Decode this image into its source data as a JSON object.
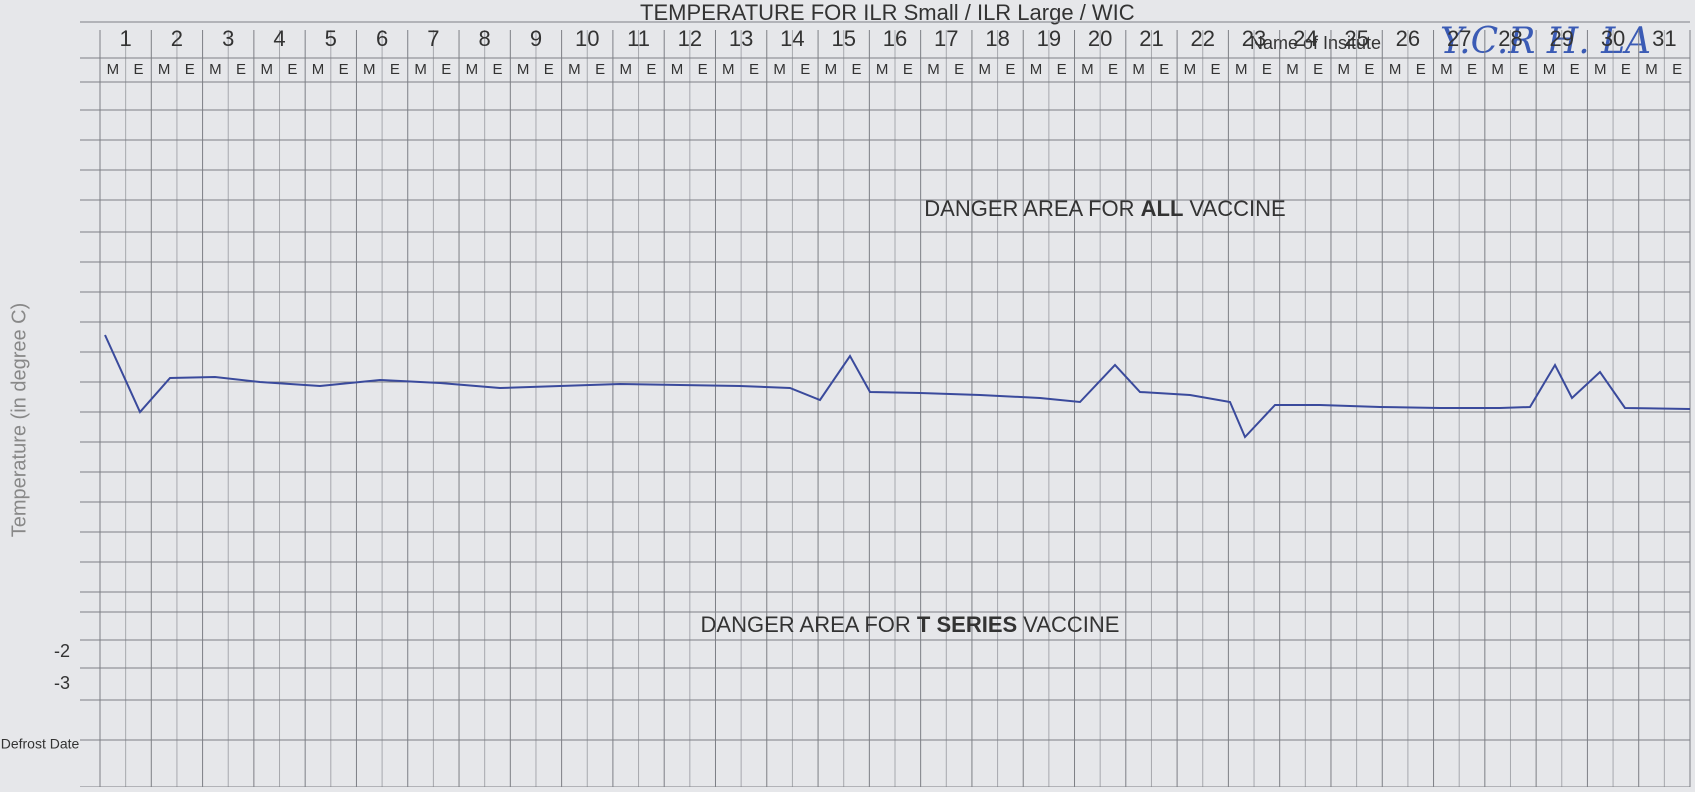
{
  "header": {
    "title": "TEMPERATURE FOR ILR Small / ILR Large / WIC",
    "institute_label": "Name of Insitute",
    "institute_value": "Y.C.R H. LA"
  },
  "days": [
    1,
    2,
    3,
    4,
    5,
    6,
    7,
    8,
    9,
    10,
    11,
    12,
    13,
    14,
    15,
    16,
    17,
    18,
    19,
    20,
    21,
    22,
    23,
    24,
    25,
    26,
    27,
    28,
    29,
    30,
    31
  ],
  "shifts": [
    "M",
    "E"
  ],
  "zones": [
    {
      "prefix": "DANGER AREA FOR ",
      "emphasis": "ALL",
      "suffix": " VACCINE"
    },
    {
      "prefix": "DANGER AREA FOR ",
      "emphasis": "T SERIES",
      "suffix": " VACCINE"
    }
  ],
  "axis_label": "Temperature (in degree C)",
  "row_labels": [
    "-2",
    "-3"
  ],
  "defrost_label": "Defrost Date"
}
